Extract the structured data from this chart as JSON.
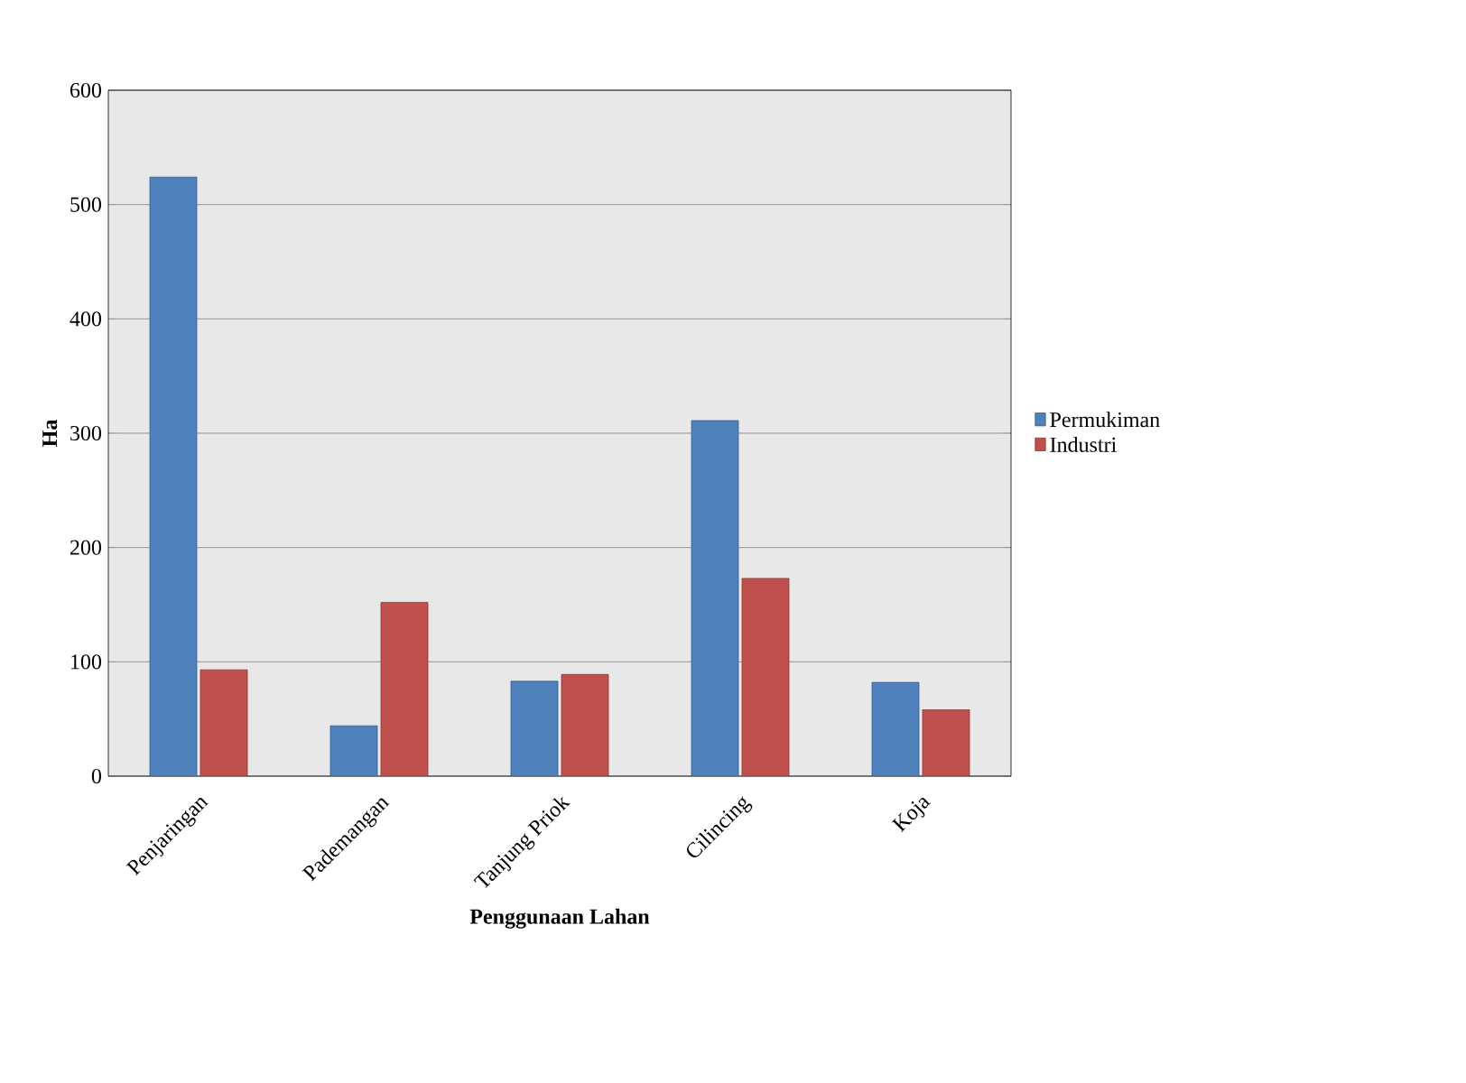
{
  "chart_data": {
    "type": "bar",
    "xlabel": "Penggunaan Lahan",
    "ylabel": "Ha",
    "categories": [
      "Penjaringan",
      "Pademangan",
      "Tanjung Priok",
      "Cilincing",
      "Koja"
    ],
    "series": [
      {
        "name": "Permukiman",
        "color": "#4f81bd",
        "values": [
          524,
          44,
          83,
          311,
          82
        ]
      },
      {
        "name": "Industri",
        "color": "#c0504d",
        "values": [
          93,
          152,
          89,
          173,
          58
        ]
      }
    ],
    "ylim": [
      0,
      600
    ],
    "yticks": [
      0,
      100,
      200,
      300,
      400,
      500,
      600
    ],
    "grid": "y",
    "legend": "right"
  }
}
